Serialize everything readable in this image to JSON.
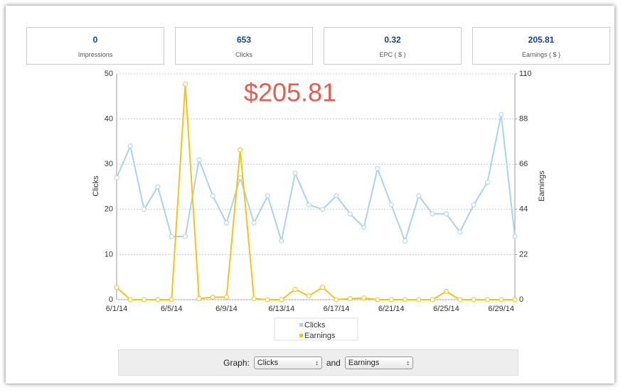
{
  "stats": [
    {
      "value": "0",
      "label": "Impressions"
    },
    {
      "value": "653",
      "label": "Clicks"
    },
    {
      "value": "0.32",
      "label": "EPC ( $ )"
    },
    {
      "value": "205.81",
      "label": "Earnings ( $ )"
    }
  ],
  "chart_data": {
    "type": "line",
    "annotation": "$205.81",
    "ylabel": "Clicks",
    "y2label": "Earnings",
    "categories": [
      "6/1/14",
      null,
      null,
      null,
      "6/5/14",
      null,
      null,
      null,
      "6/9/14",
      null,
      null,
      null,
      "6/13/14",
      null,
      null,
      null,
      "6/17/14",
      null,
      null,
      null,
      "6/21/14",
      null,
      null,
      null,
      "6/25/14",
      null,
      null,
      null,
      "6/29/14",
      null
    ],
    "series": [
      {
        "name": "Clicks",
        "color": "#a9d3ec",
        "values": [
          27,
          34,
          20,
          25,
          14,
          14,
          31,
          23,
          17,
          27,
          17,
          23,
          13,
          28,
          21,
          20,
          23,
          19,
          16,
          29,
          21,
          13,
          23,
          19,
          19,
          15,
          21,
          26,
          41,
          14
        ]
      },
      {
        "name": "Earnings",
        "color": "#f2c318",
        "axis": "y2",
        "values": [
          6,
          0,
          0,
          0,
          0,
          105,
          0.5,
          1.2,
          1.2,
          73,
          0.5,
          0,
          0,
          5,
          1.8,
          6,
          0,
          0.5,
          0.8,
          0,
          0,
          0,
          0,
          0,
          4,
          0,
          0,
          0,
          0,
          0
        ]
      }
    ],
    "ylim": [
      0,
      50
    ],
    "yticks": [
      0,
      10,
      20,
      30,
      40,
      50
    ],
    "y2lim": [
      0,
      110
    ],
    "y2ticks": [
      0,
      22,
      44,
      66,
      88,
      110
    ],
    "grid": true,
    "legend": "bottom"
  },
  "controls": {
    "label": "Graph:",
    "first": "Clicks",
    "joiner": "and",
    "second": "Earnings"
  }
}
